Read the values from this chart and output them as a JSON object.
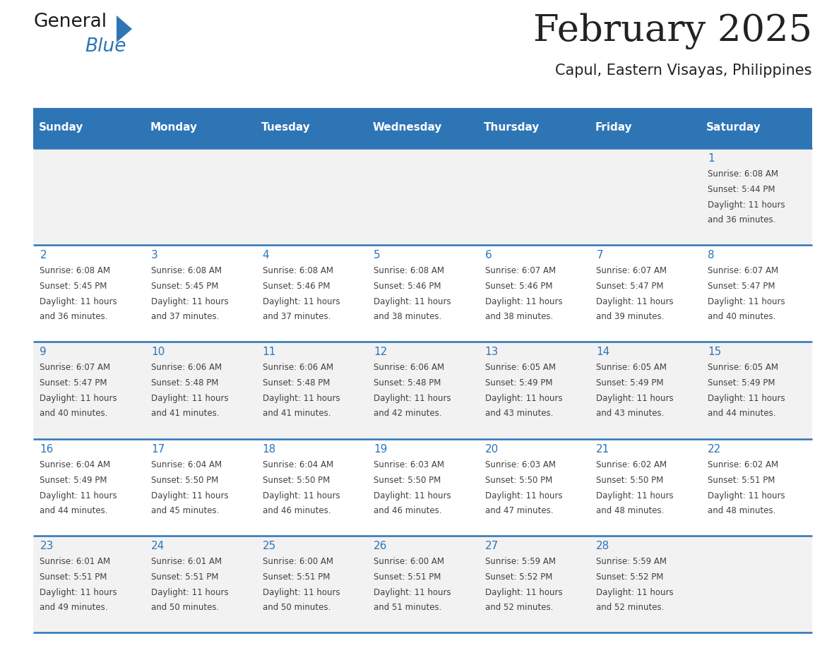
{
  "title": "February 2025",
  "subtitle": "Capul, Eastern Visayas, Philippines",
  "header_bg_color": "#2E75B6",
  "header_text_color": "#FFFFFF",
  "day_names": [
    "Sunday",
    "Monday",
    "Tuesday",
    "Wednesday",
    "Thursday",
    "Friday",
    "Saturday"
  ],
  "alt_row_color": "#F2F2F2",
  "white_color": "#FFFFFF",
  "border_color": "#2E75B6",
  "text_color": "#404040",
  "day_num_color": "#2E75B6",
  "calendar_data": [
    [
      null,
      null,
      null,
      null,
      null,
      null,
      1
    ],
    [
      2,
      3,
      4,
      5,
      6,
      7,
      8
    ],
    [
      9,
      10,
      11,
      12,
      13,
      14,
      15
    ],
    [
      16,
      17,
      18,
      19,
      20,
      21,
      22
    ],
    [
      23,
      24,
      25,
      26,
      27,
      28,
      null
    ]
  ],
  "sunrise_data": {
    "1": "6:08 AM",
    "2": "6:08 AM",
    "3": "6:08 AM",
    "4": "6:08 AM",
    "5": "6:08 AM",
    "6": "6:07 AM",
    "7": "6:07 AM",
    "8": "6:07 AM",
    "9": "6:07 AM",
    "10": "6:06 AM",
    "11": "6:06 AM",
    "12": "6:06 AM",
    "13": "6:05 AM",
    "14": "6:05 AM",
    "15": "6:05 AM",
    "16": "6:04 AM",
    "17": "6:04 AM",
    "18": "6:04 AM",
    "19": "6:03 AM",
    "20": "6:03 AM",
    "21": "6:02 AM",
    "22": "6:02 AM",
    "23": "6:01 AM",
    "24": "6:01 AM",
    "25": "6:00 AM",
    "26": "6:00 AM",
    "27": "5:59 AM",
    "28": "5:59 AM"
  },
  "sunset_data": {
    "1": "5:44 PM",
    "2": "5:45 PM",
    "3": "5:45 PM",
    "4": "5:46 PM",
    "5": "5:46 PM",
    "6": "5:46 PM",
    "7": "5:47 PM",
    "8": "5:47 PM",
    "9": "5:47 PM",
    "10": "5:48 PM",
    "11": "5:48 PM",
    "12": "5:48 PM",
    "13": "5:49 PM",
    "14": "5:49 PM",
    "15": "5:49 PM",
    "16": "5:49 PM",
    "17": "5:50 PM",
    "18": "5:50 PM",
    "19": "5:50 PM",
    "20": "5:50 PM",
    "21": "5:50 PM",
    "22": "5:51 PM",
    "23": "5:51 PM",
    "24": "5:51 PM",
    "25": "5:51 PM",
    "26": "5:51 PM",
    "27": "5:52 PM",
    "28": "5:52 PM"
  },
  "daylight_data": {
    "1": "11 hours\nand 36 minutes.",
    "2": "11 hours\nand 36 minutes.",
    "3": "11 hours\nand 37 minutes.",
    "4": "11 hours\nand 37 minutes.",
    "5": "11 hours\nand 38 minutes.",
    "6": "11 hours\nand 38 minutes.",
    "7": "11 hours\nand 39 minutes.",
    "8": "11 hours\nand 40 minutes.",
    "9": "11 hours\nand 40 minutes.",
    "10": "11 hours\nand 41 minutes.",
    "11": "11 hours\nand 41 minutes.",
    "12": "11 hours\nand 42 minutes.",
    "13": "11 hours\nand 43 minutes.",
    "14": "11 hours\nand 43 minutes.",
    "15": "11 hours\nand 44 minutes.",
    "16": "11 hours\nand 44 minutes.",
    "17": "11 hours\nand 45 minutes.",
    "18": "11 hours\nand 46 minutes.",
    "19": "11 hours\nand 46 minutes.",
    "20": "11 hours\nand 47 minutes.",
    "21": "11 hours\nand 48 minutes.",
    "22": "11 hours\nand 48 minutes.",
    "23": "11 hours\nand 49 minutes.",
    "24": "11 hours\nand 50 minutes.",
    "25": "11 hours\nand 50 minutes.",
    "26": "11 hours\nand 51 minutes.",
    "27": "11 hours\nand 52 minutes.",
    "28": "11 hours\nand 52 minutes."
  },
  "logo_color_general": "#1a1a1a",
  "logo_color_blue": "#2E75B6",
  "logo_triangle_color": "#2E75B6",
  "fig_width": 11.88,
  "fig_height": 9.18,
  "dpi": 100
}
